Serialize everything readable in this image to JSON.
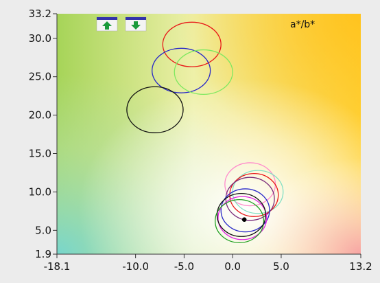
{
  "chart_data": {
    "type": "scatter",
    "title": "",
    "corner_label": "a*/b*",
    "xlabel": "",
    "ylabel": "",
    "xlim": [
      -18.1,
      13.2
    ],
    "ylim": [
      1.9,
      33.2
    ],
    "x_ticks": [
      {
        "value": -18.1,
        "label": "-18.1"
      },
      {
        "value": -10.0,
        "label": "-10.0"
      },
      {
        "value": -5.0,
        "label": "-5.0"
      },
      {
        "value": 0.0,
        "label": "0.0"
      },
      {
        "value": 5.0,
        "label": "5.0"
      },
      {
        "value": 13.2,
        "label": "13.2"
      }
    ],
    "y_ticks": [
      {
        "value": 33.2,
        "label": "33.2"
      },
      {
        "value": 30.0,
        "label": "30.0"
      },
      {
        "value": 25.0,
        "label": "25.0"
      },
      {
        "value": 20.0,
        "label": "20.0"
      },
      {
        "value": 15.0,
        "label": "15.0"
      },
      {
        "value": 10.0,
        "label": "10.0"
      },
      {
        "value": 5.0,
        "label": "5.0"
      },
      {
        "value": 1.9,
        "label": "1.9"
      }
    ],
    "grid": false,
    "background": "a*/b* color space gradient (green top-left, yellow top-right, cyan bottom-left, pink bottom-right)",
    "tolerance_ellipses": [
      {
        "cx": -4.2,
        "cy": 29.2,
        "rx": 3.0,
        "ry": 2.9,
        "color": "#e81818"
      },
      {
        "cx": -5.3,
        "cy": 25.8,
        "rx": 3.0,
        "ry": 2.9,
        "color": "#2828c8"
      },
      {
        "cx": -3.0,
        "cy": 25.6,
        "rx": 3.0,
        "ry": 2.9,
        "color": "#7ee860"
      },
      {
        "cx": -8.0,
        "cy": 20.7,
        "rx": 2.9,
        "ry": 3.0,
        "color": "#111111"
      },
      {
        "cx": 1.8,
        "cy": 11.0,
        "rx": 2.6,
        "ry": 2.8,
        "color": "#ff8ccc"
      },
      {
        "cx": 2.6,
        "cy": 10.0,
        "rx": 2.6,
        "ry": 2.8,
        "color": "#84e0c4"
      },
      {
        "cx": 2.2,
        "cy": 9.6,
        "rx": 2.5,
        "ry": 2.8,
        "color": "#e81818"
      },
      {
        "cx": 1.8,
        "cy": 9.1,
        "rx": 2.5,
        "ry": 2.8,
        "color": "#7a2a7a"
      },
      {
        "cx": 1.3,
        "cy": 7.6,
        "rx": 2.5,
        "ry": 2.8,
        "color": "#2828c8"
      },
      {
        "cx": 1.0,
        "cy": 6.6,
        "rx": 2.5,
        "ry": 2.8,
        "color": "#e020e0"
      },
      {
        "cx": 0.7,
        "cy": 6.2,
        "rx": 2.5,
        "ry": 2.8,
        "color": "#20a020"
      },
      {
        "cx": 0.9,
        "cy": 7.0,
        "rx": 2.5,
        "ry": 2.8,
        "color": "#111111"
      }
    ],
    "points": [
      {
        "x": 1.2,
        "y": 6.4,
        "color": "#000000"
      }
    ]
  },
  "toolbar": {
    "buttons": [
      {
        "icon": "arrow-up-icon",
        "color": "#1a9a3a"
      },
      {
        "icon": "arrow-down-icon",
        "color": "#1a9a3a"
      }
    ]
  }
}
